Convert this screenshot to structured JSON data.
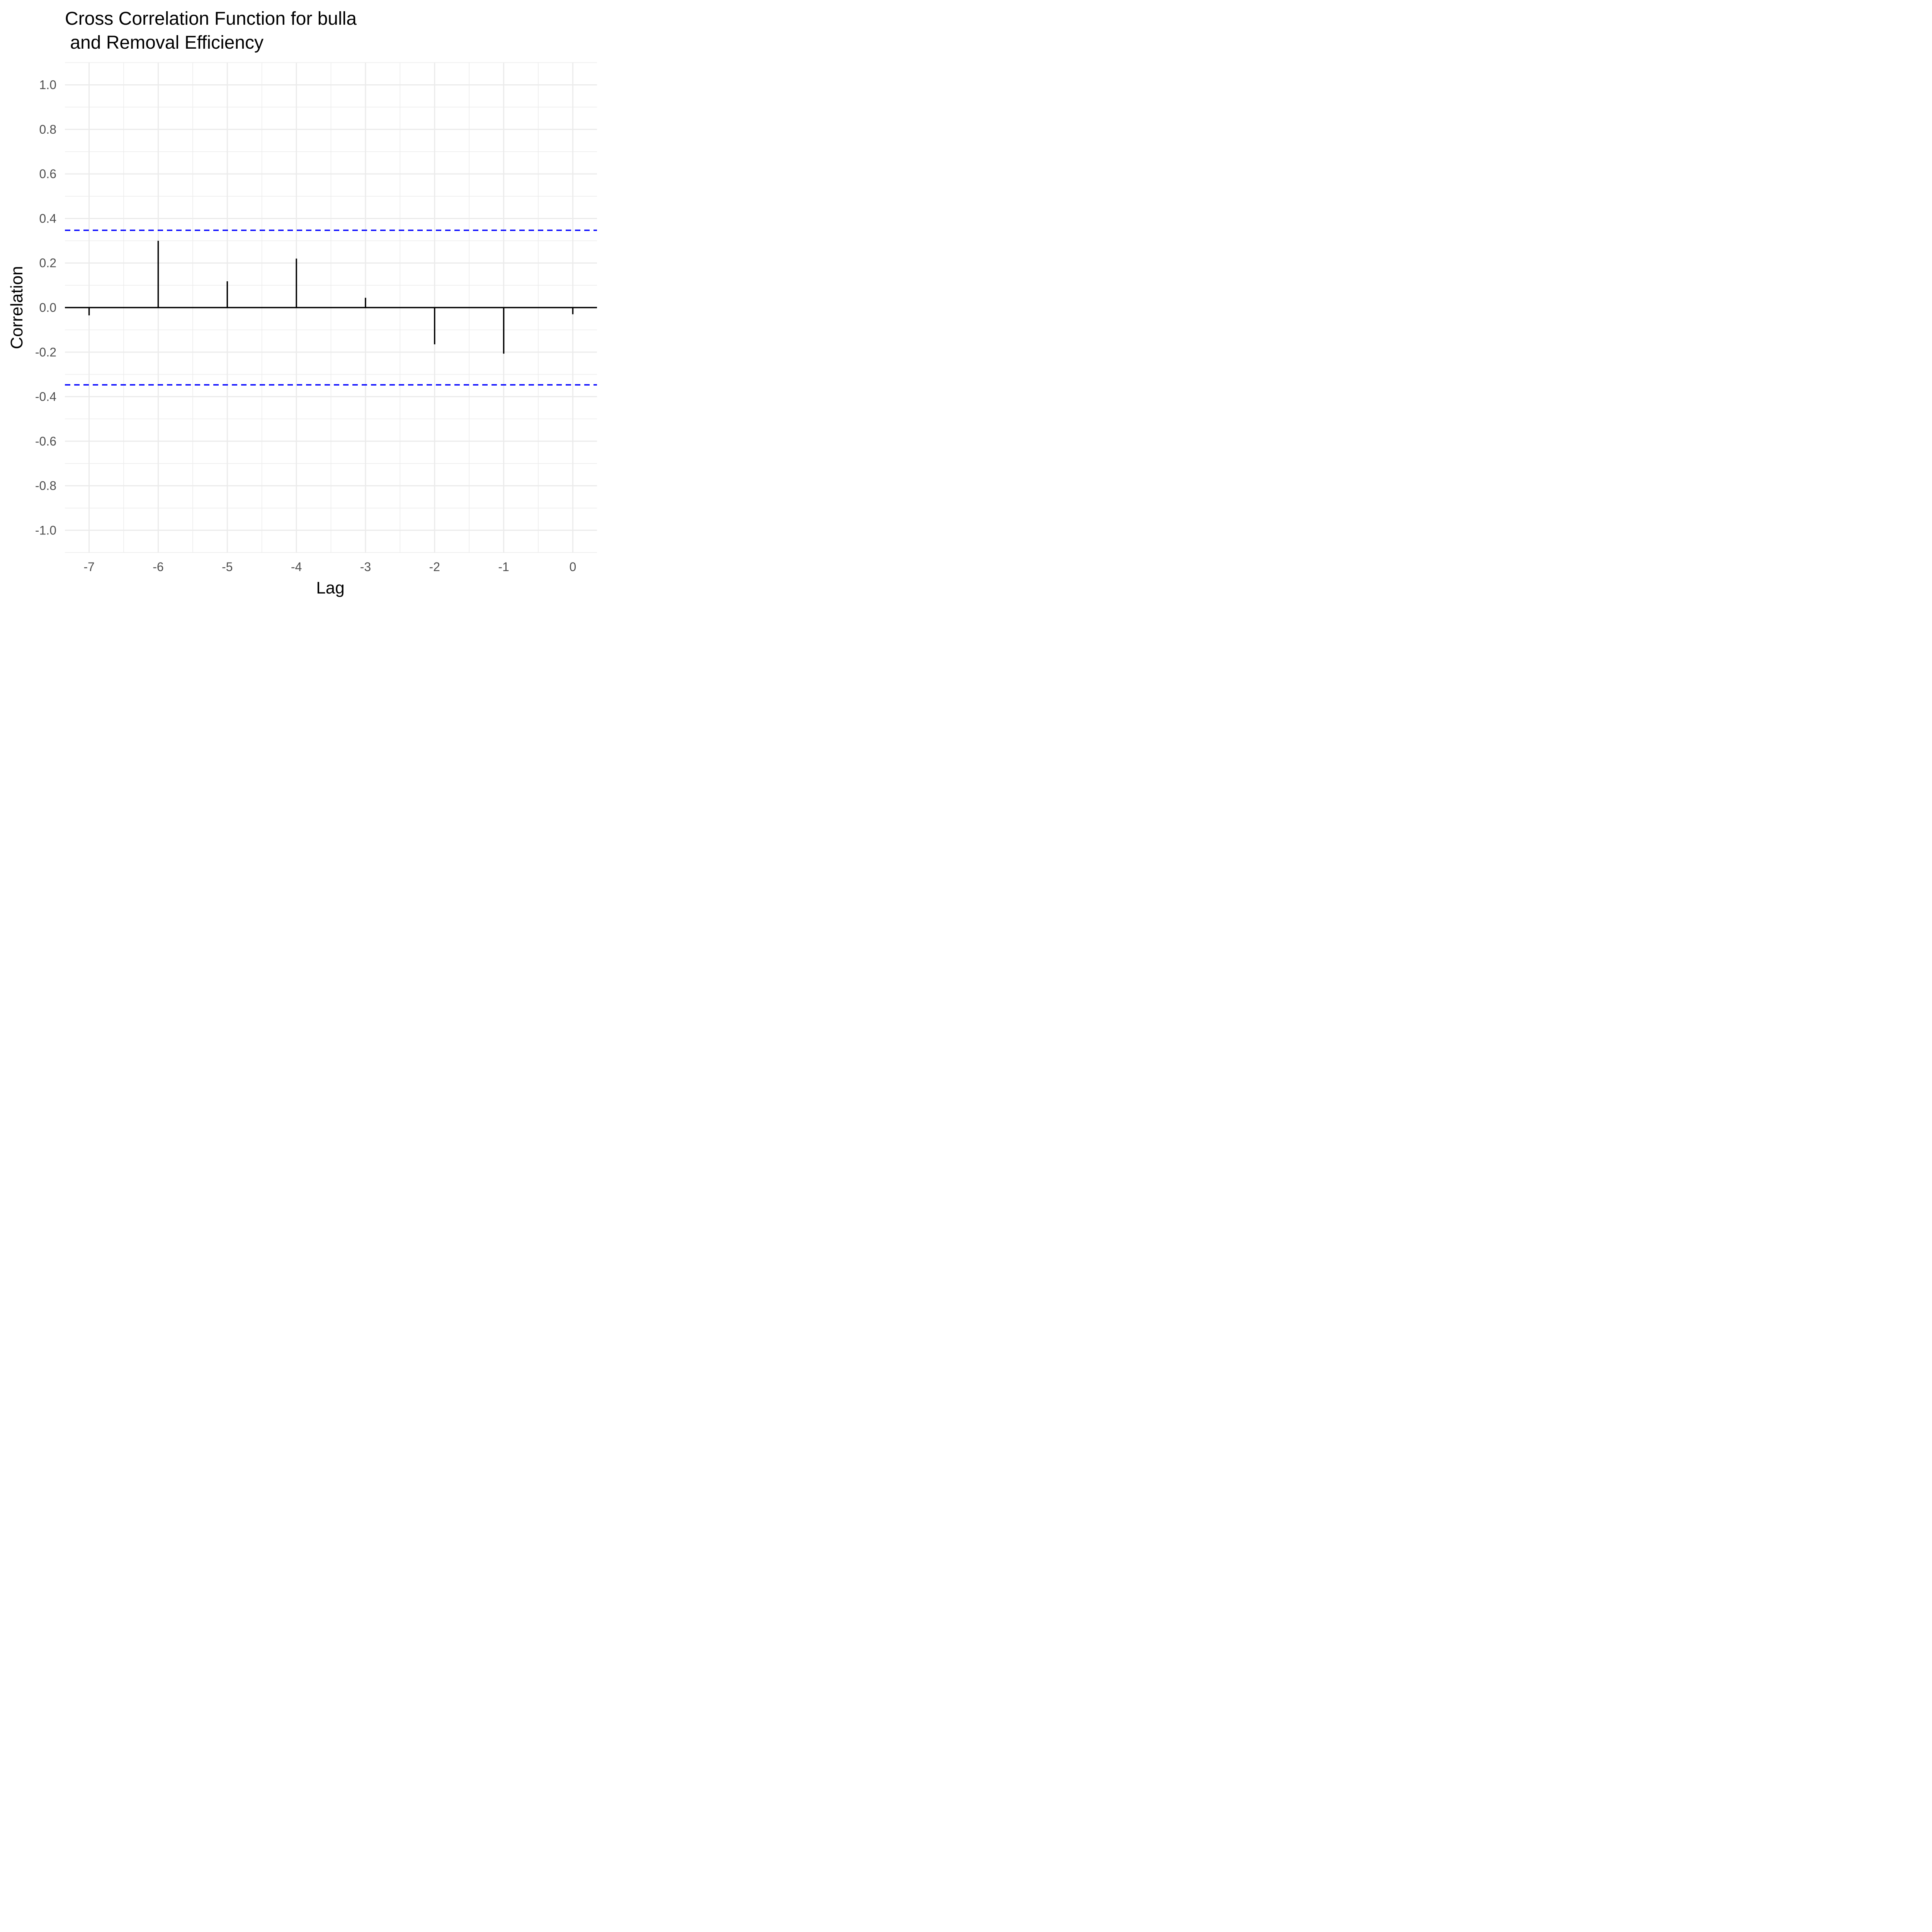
{
  "chart_data": {
    "type": "bar",
    "title_lines": [
      "Cross Correlation Function for bulla",
      " and Removal Efficiency"
    ],
    "xlabel": "Lag",
    "ylabel": "Correlation",
    "x": [
      -7,
      -6,
      -5,
      -4,
      -3,
      -2,
      -1,
      0
    ],
    "values": [
      -0.035,
      0.3,
      0.118,
      0.22,
      0.044,
      -0.165,
      -0.207,
      -0.03
    ],
    "xlim": [
      -7.35,
      0.35
    ],
    "ylim": [
      -1.1,
      1.1
    ],
    "x_ticks": [
      -7,
      -6,
      -5,
      -4,
      -3,
      -2,
      -1,
      0
    ],
    "x_tick_labels": [
      "-7",
      "-6",
      "-5",
      "-4",
      "-3",
      "-2",
      "-1",
      "0"
    ],
    "y_ticks": [
      -1.0,
      -0.8,
      -0.6,
      -0.4,
      -0.2,
      0.0,
      0.2,
      0.4,
      0.6,
      0.8,
      1.0
    ],
    "y_tick_labels": [
      "-1.0",
      "-0.8",
      "-0.6",
      "-0.4",
      "-0.2",
      "0.0",
      "0.2",
      "0.4",
      "0.6",
      "0.8",
      "1.0"
    ],
    "confidence_bounds": [
      0.347,
      -0.347
    ],
    "grid": true,
    "colors": {
      "bars": "#000000",
      "zero_line": "#000000",
      "confidence_line": "#0000ff",
      "grid": "#ebebeb"
    }
  }
}
